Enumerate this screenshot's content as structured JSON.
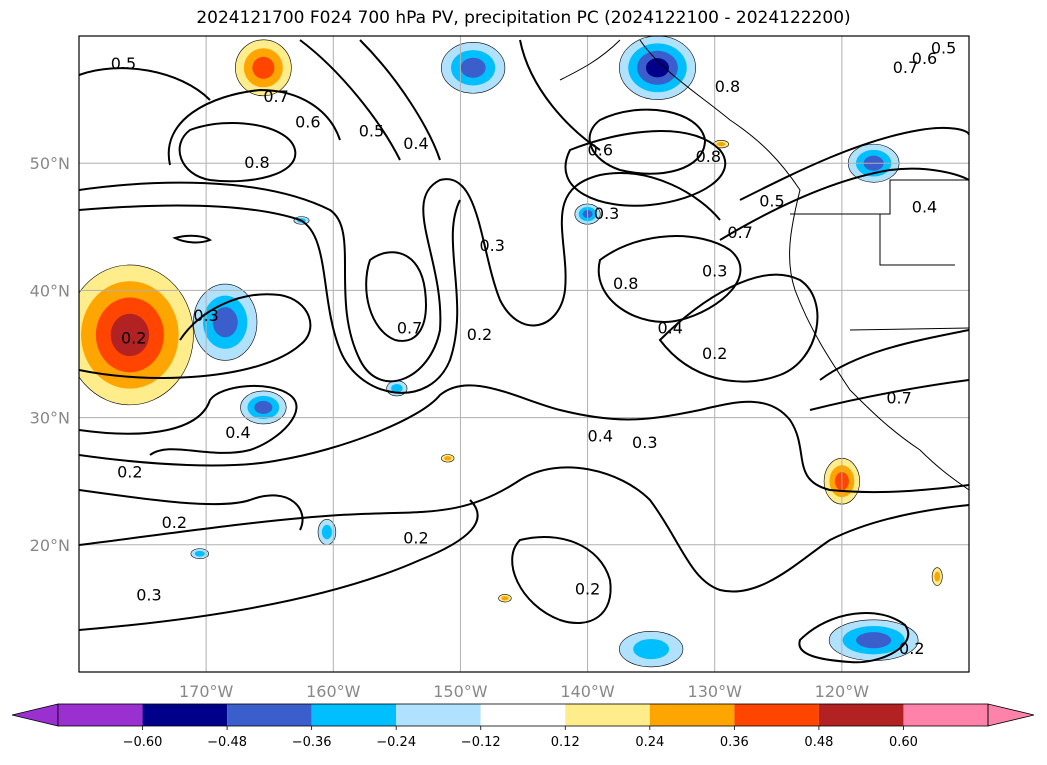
{
  "title": "2024121700 F024 700 hPa PV, precipitation PC (2024122100 - 2024122200)",
  "axes": {
    "lon_ticks": [
      "170°W",
      "160°W",
      "150°W",
      "140°W",
      "130°W",
      "120°W"
    ],
    "lat_ticks": [
      "50°N",
      "40°N",
      "30°N",
      "20°N"
    ]
  },
  "colorbar": {
    "ticks": [
      "−0.60",
      "−0.48",
      "−0.36",
      "−0.24",
      "−0.12",
      "0.12",
      "0.24",
      "0.36",
      "0.48",
      "0.60"
    ],
    "colors": [
      "#9b30d0",
      "#00008b",
      "#3a5fcd",
      "#00bfff",
      "#b0e2ff",
      "#ffffff",
      "#ffec8b",
      "#ffa500",
      "#ff4500",
      "#b22222",
      "#ff82ab"
    ]
  },
  "contour_labels": [
    {
      "text": "0.5",
      "lon": -176.5,
      "lat": 57.8
    },
    {
      "text": "0.7",
      "lon": -164.5,
      "lat": 55.2
    },
    {
      "text": "0.6",
      "lon": -162.0,
      "lat": 53.2
    },
    {
      "text": "0.8",
      "lon": -166.0,
      "lat": 50.0
    },
    {
      "text": "0.5",
      "lon": -157.0,
      "lat": 52.5
    },
    {
      "text": "0.4",
      "lon": -153.5,
      "lat": 51.5
    },
    {
      "text": "0.6",
      "lon": -139.0,
      "lat": 51.0
    },
    {
      "text": "0.8",
      "lon": -130.5,
      "lat": 50.5
    },
    {
      "text": "0.3",
      "lon": -138.5,
      "lat": 46.0
    },
    {
      "text": "0.3",
      "lon": -147.5,
      "lat": 43.5
    },
    {
      "text": "0.7",
      "lon": -128.0,
      "lat": 44.5
    },
    {
      "text": "0.5",
      "lon": -125.5,
      "lat": 47.0
    },
    {
      "text": "0.3",
      "lon": -130.0,
      "lat": 41.5
    },
    {
      "text": "0.8",
      "lon": -137.0,
      "lat": 40.5
    },
    {
      "text": "0.4",
      "lon": -133.5,
      "lat": 37.0
    },
    {
      "text": "0.2",
      "lon": -130.0,
      "lat": 35.0
    },
    {
      "text": "0.7",
      "lon": -154.0,
      "lat": 37.0
    },
    {
      "text": "0.2",
      "lon": -148.5,
      "lat": 36.5
    },
    {
      "text": "0.3",
      "lon": -170.0,
      "lat": 38.0
    },
    {
      "text": "0.2",
      "lon": -175.7,
      "lat": 36.2
    },
    {
      "text": "0.4",
      "lon": -167.5,
      "lat": 28.8
    },
    {
      "text": "0.4",
      "lon": -139.0,
      "lat": 28.5
    },
    {
      "text": "0.3",
      "lon": -135.5,
      "lat": 28.0
    },
    {
      "text": "0.2",
      "lon": -176.0,
      "lat": 25.7
    },
    {
      "text": "0.2",
      "lon": -172.5,
      "lat": 21.7
    },
    {
      "text": "0.2",
      "lon": -153.5,
      "lat": 20.5
    },
    {
      "text": "0.3",
      "lon": -174.5,
      "lat": 16.0
    },
    {
      "text": "0.2",
      "lon": -140.0,
      "lat": 16.5
    },
    {
      "text": "0.2",
      "lon": -114.5,
      "lat": 11.8
    },
    {
      "text": "0.8",
      "lon": -129.0,
      "lat": 56.0
    },
    {
      "text": "0.7",
      "lon": -115.0,
      "lat": 57.5
    },
    {
      "text": "0.6",
      "lon": -113.5,
      "lat": 58.2
    },
    {
      "text": "0.5",
      "lon": -112.0,
      "lat": 59.0
    },
    {
      "text": "0.4",
      "lon": -113.5,
      "lat": 46.5
    },
    {
      "text": "0.7",
      "lon": -115.5,
      "lat": 31.5
    }
  ],
  "precip_blobs": [
    {
      "level": "0.60",
      "lon": -176.0,
      "lat": 36.5,
      "rx_deg": 5.0,
      "ry_deg": 5.5
    },
    {
      "level": "0.36",
      "lon": -165.5,
      "lat": 57.5,
      "rx_deg": 2.2,
      "ry_deg": 2.2
    },
    {
      "level": "-0.48",
      "lon": -149.0,
      "lat": 57.5,
      "rx_deg": 2.5,
      "ry_deg": 2.0
    },
    {
      "level": "-0.60",
      "lon": -134.5,
      "lat": 57.5,
      "rx_deg": 3.0,
      "ry_deg": 2.5
    },
    {
      "level": "-0.36",
      "lon": -168.5,
      "lat": 37.5,
      "rx_deg": 2.5,
      "ry_deg": 3.0
    },
    {
      "level": "-0.36",
      "lon": -165.5,
      "lat": 30.8,
      "rx_deg": 1.8,
      "ry_deg": 1.3
    },
    {
      "level": "-0.36",
      "lon": -140.0,
      "lat": 46.0,
      "rx_deg": 1.0,
      "ry_deg": 0.8
    },
    {
      "level": "-0.36",
      "lon": -117.5,
      "lat": 50.0,
      "rx_deg": 2.0,
      "ry_deg": 1.5
    },
    {
      "level": "-0.24",
      "lon": -135.0,
      "lat": 11.8,
      "rx_deg": 2.5,
      "ry_deg": 1.4
    },
    {
      "level": "-0.36",
      "lon": -117.5,
      "lat": 12.5,
      "rx_deg": 3.5,
      "ry_deg": 1.6
    },
    {
      "level": "0.48",
      "lon": -120.0,
      "lat": 25.0,
      "rx_deg": 1.4,
      "ry_deg": 1.8
    },
    {
      "level": "-0.24",
      "lon": -155.0,
      "lat": 32.3,
      "rx_deg": 0.8,
      "ry_deg": 0.6
    },
    {
      "level": "-0.24",
      "lon": -160.5,
      "lat": 21.0,
      "rx_deg": 0.7,
      "ry_deg": 1.0
    },
    {
      "level": "-0.24",
      "lon": -170.5,
      "lat": 19.3,
      "rx_deg": 0.7,
      "ry_deg": 0.4
    },
    {
      "level": "0.24",
      "lon": -112.5,
      "lat": 17.5,
      "rx_deg": 0.4,
      "ry_deg": 0.7
    },
    {
      "level": "0.24",
      "lon": -151.0,
      "lat": 26.8,
      "rx_deg": 0.5,
      "ry_deg": 0.3
    },
    {
      "level": "0.24",
      "lon": -146.5,
      "lat": 15.8,
      "rx_deg": 0.5,
      "ry_deg": 0.3
    },
    {
      "level": "0.24",
      "lon": -129.5,
      "lat": 51.5,
      "rx_deg": 0.6,
      "ry_deg": 0.3
    },
    {
      "level": "-0.24",
      "lon": -162.5,
      "lat": 45.5,
      "rx_deg": 0.6,
      "ry_deg": 0.3
    }
  ]
}
